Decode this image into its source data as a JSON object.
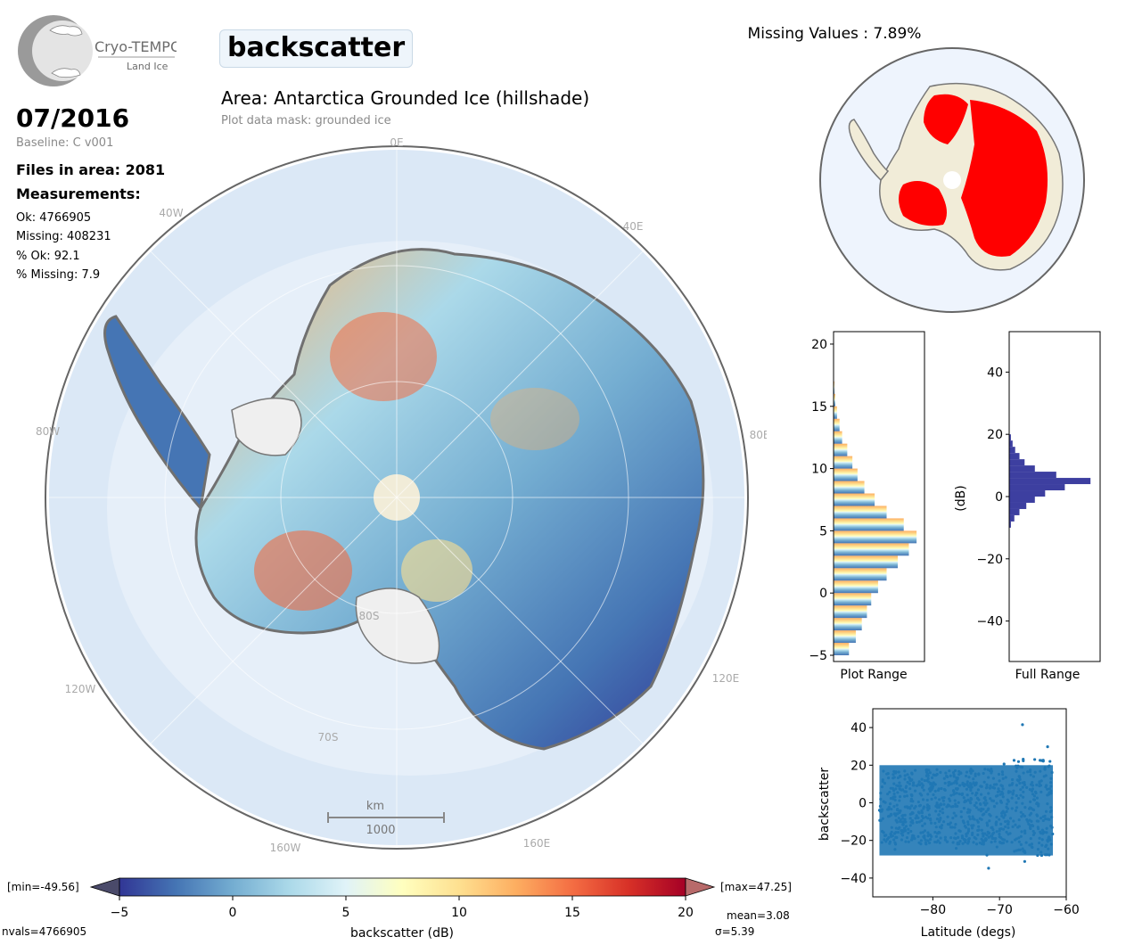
{
  "logo": {
    "name": "Cryo-TEMPO",
    "subtitle": "Land Ice"
  },
  "header": {
    "variable": "backscatter",
    "area_title": "Area: Antarctica Grounded Ice (hillshade)",
    "mask": "Plot data mask: grounded ice"
  },
  "info": {
    "date": "07/2016",
    "baseline": "Baseline: C v001",
    "files": "Files in area: 2081",
    "measurements_heading": "Measurements:",
    "ok": "Ok: 4766905",
    "missing": "Missing: 408231",
    "pct_ok": "% Ok: 92.1",
    "pct_missing": "% Missing: 7.9"
  },
  "map": {
    "grid_labels": [
      "0E",
      "40E",
      "80E",
      "120E",
      "160E",
      "160W",
      "120W",
      "80W",
      "40W",
      "80S",
      "70S"
    ],
    "scale_unit": "km",
    "scale_value": "1000"
  },
  "colorbar": {
    "label": "backscatter (dB)",
    "ticks": [
      "−5",
      "0",
      "5",
      "10",
      "15",
      "20"
    ],
    "min_label": "[min=-49.56]",
    "max_label": "[max=47.25]",
    "nvals": "nvals=4766905",
    "mean": "mean=3.08",
    "sigma": "σ=5.39",
    "colors": [
      "#313695",
      "#4575b4",
      "#74add1",
      "#abd9e9",
      "#e0f3f8",
      "#ffffbf",
      "#fee090",
      "#fdae61",
      "#f46d43",
      "#d73027",
      "#a50026"
    ]
  },
  "chart_data": [
    {
      "type": "map",
      "title": "Missing Values : 7.89%",
      "missing_color": "#ff0000"
    },
    {
      "type": "bar",
      "xlabel": "Plot Range",
      "ylim": [
        -5.5,
        21
      ],
      "yticks": [
        "−5",
        "0",
        "5",
        "10",
        "15",
        "20"
      ],
      "bins": [
        -5,
        -4,
        -3,
        -2,
        -1,
        0,
        1,
        2,
        3,
        4,
        5,
        6,
        7,
        8,
        9,
        10,
        11,
        12,
        13,
        14,
        15,
        16
      ],
      "values": [
        0.18,
        0.26,
        0.33,
        0.39,
        0.44,
        0.52,
        0.62,
        0.75,
        0.88,
        0.97,
        0.82,
        0.62,
        0.48,
        0.36,
        0.28,
        0.22,
        0.16,
        0.1,
        0.07,
        0.04,
        0.02,
        0.01
      ]
    },
    {
      "type": "bar",
      "xlabel": "Full Range",
      "ylabel": "(dB)",
      "ylim": [
        -53,
        53
      ],
      "yticks": [
        "40",
        "20",
        "0",
        "−20",
        "−40"
      ],
      "bins": [
        -10,
        -8,
        -6,
        -4,
        -2,
        0,
        2,
        4,
        6,
        8,
        10,
        12,
        14,
        16,
        18
      ],
      "values": [
        0.02,
        0.06,
        0.12,
        0.2,
        0.3,
        0.42,
        0.65,
        0.95,
        0.55,
        0.3,
        0.18,
        0.12,
        0.07,
        0.04,
        0.02
      ],
      "bar_color": "#3d3fa0"
    },
    {
      "type": "scatter",
      "xlabel": "Latitude (degs)",
      "ylabel": "backscatter",
      "xlim": [
        -89,
        -60
      ],
      "ylim": [
        -50,
        50
      ],
      "xticks": [
        "−80",
        "−70",
        "−60"
      ],
      "yticks": [
        "40",
        "20",
        "0",
        "−20",
        "−40"
      ],
      "color": "#1f77b4"
    }
  ]
}
